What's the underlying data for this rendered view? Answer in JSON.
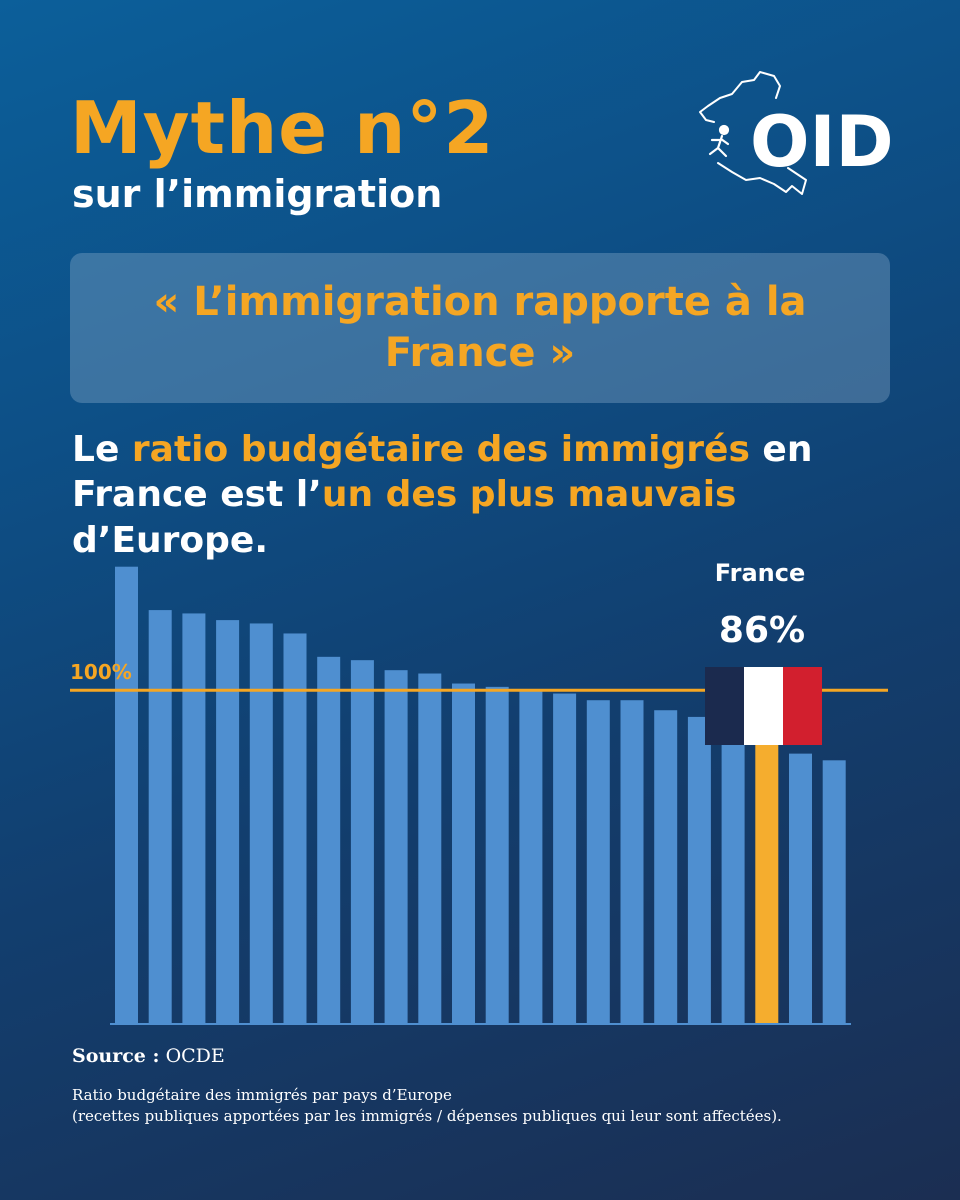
{
  "header": {
    "title": "Mythe n°2",
    "subtitle": "sur l’immigration",
    "logo_text": "OID"
  },
  "quote": {
    "text": "« L’immigration rapporte à la France »"
  },
  "statement": {
    "part1": "Le ",
    "highlight1": "ratio budgétaire des immigrés",
    "part2": " en France est l’",
    "highlight2": "un des plus mauvais",
    "part3": " d’Europe."
  },
  "footer": {
    "source_label": "Source :",
    "source_value": "OCDE",
    "caption_line1": "Ratio budgétaire des immigrés par pays d’Europe",
    "caption_line2": "(recettes publiques apportées par les immigrés / dépenses publiques qui leur sont affectées)."
  },
  "colors": {
    "accent": "#f5a623",
    "bar": "#4f8fd0",
    "highlight_bar": "#f5ad2e",
    "flag_blue": "#1b2a4e",
    "flag_white": "#ffffff",
    "flag_red": "#d21f2e"
  },
  "chart_data": {
    "type": "bar",
    "values": [
      137,
      124,
      123,
      121,
      120,
      117,
      110,
      109,
      106,
      105,
      102,
      101,
      100,
      99,
      97,
      97,
      94,
      92,
      90,
      86,
      81,
      79
    ],
    "highlight_index": 19,
    "highlight_country": "France",
    "highlight_label": "86%",
    "reference_value": 100,
    "reference_label": "100%",
    "ylim": [
      0,
      145
    ],
    "grid": false,
    "xlabel": "",
    "ylabel": ""
  }
}
